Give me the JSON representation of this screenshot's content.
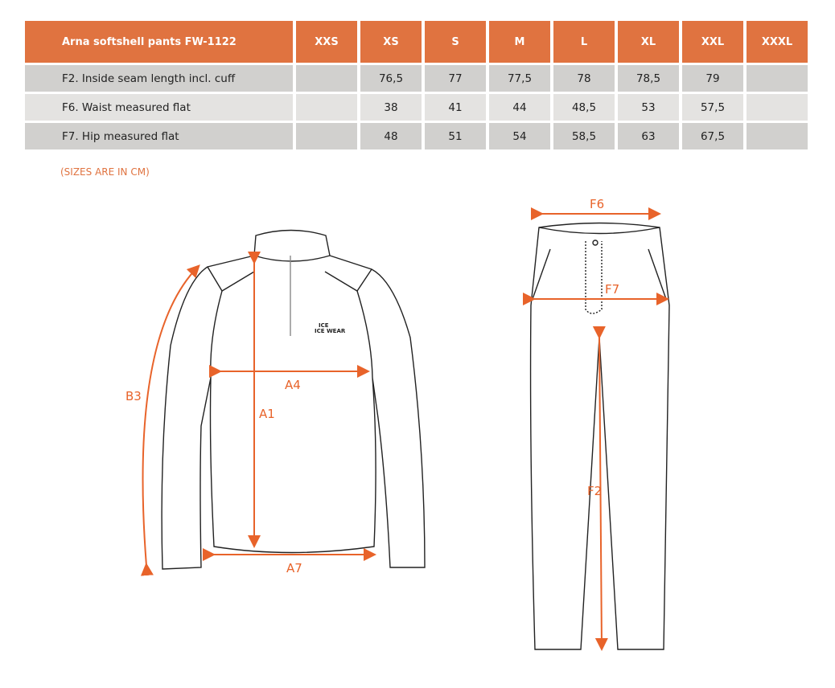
{
  "table": {
    "title": "Arna softshell pants FW-1122",
    "sizes": [
      "XXS",
      "XS",
      "S",
      "M",
      "L",
      "XL",
      "XXL",
      "XXXL"
    ],
    "rows": [
      {
        "label": "F2. Inside seam length incl. cuff",
        "values": [
          "",
          "76,5",
          "77",
          "77,5",
          "78",
          "78,5",
          "79",
          ""
        ]
      },
      {
        "label": "F6. Waist measured flat",
        "values": [
          "",
          "38",
          "41",
          "44",
          "48,5",
          "53",
          "57,5",
          ""
        ]
      },
      {
        "label": "F7. Hip measured flat",
        "values": [
          "",
          "48",
          "51",
          "54",
          "58,5",
          "63",
          "67,5",
          ""
        ]
      }
    ]
  },
  "note": "(SIZES ARE IN CM)",
  "diagram": {
    "jacket_labels": {
      "b3": "B3",
      "a4": "A4",
      "a1": "A1",
      "a7": "A7"
    },
    "pants_labels": {
      "f6": "F6",
      "f7": "F7",
      "f2": "F2"
    },
    "logo": "ICE WEAR",
    "accent": "#e8632a"
  }
}
